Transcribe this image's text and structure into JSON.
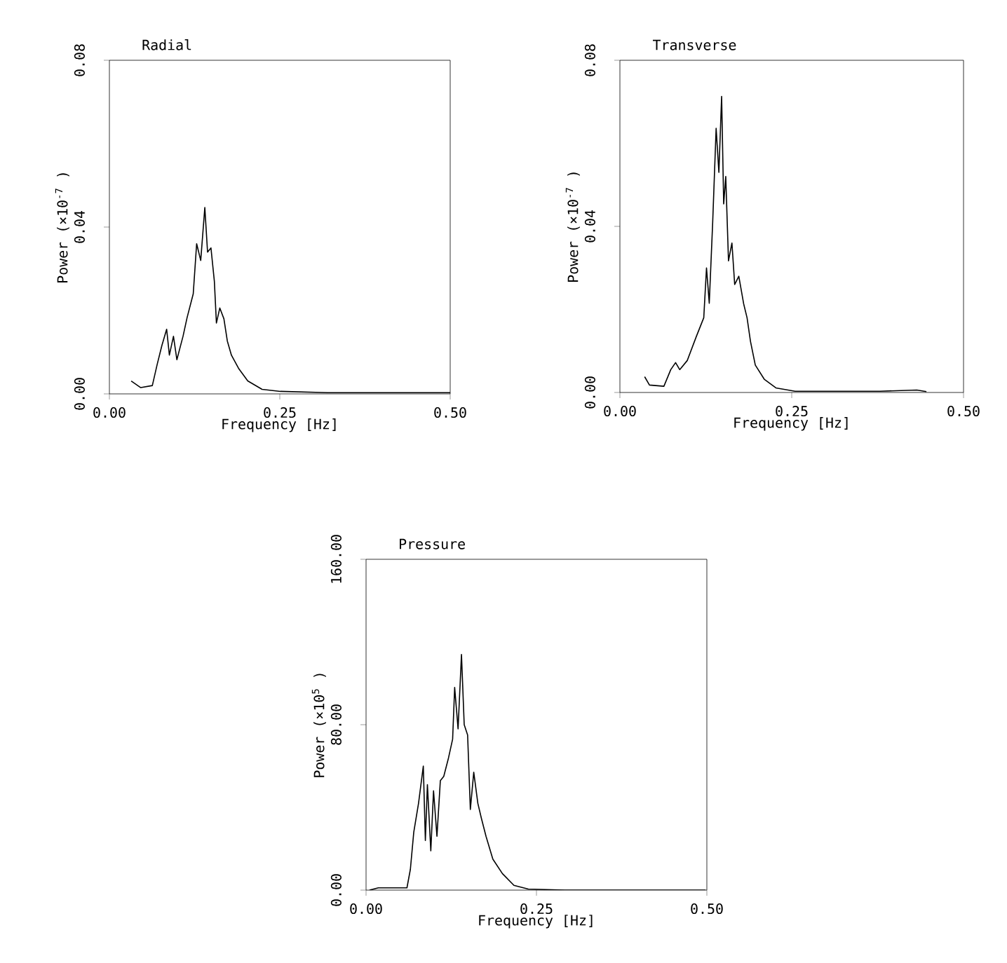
{
  "chart_data": [
    {
      "type": "line",
      "title": "Radial",
      "xlabel": "Frequency [Hz]",
      "ylabel": "Power (×10$^{-7}$ )",
      "color": "#000000",
      "x": [
        0.032,
        0.046,
        0.063,
        0.07,
        0.077,
        0.084,
        0.088,
        0.094,
        0.099,
        0.108,
        0.114,
        0.123,
        0.128,
        0.134,
        0.14,
        0.144,
        0.149,
        0.154,
        0.157,
        0.162,
        0.168,
        0.173,
        0.179,
        0.19,
        0.203,
        0.224,
        0.251,
        0.32,
        0.4,
        0.5
      ],
      "values": [
        0.0031,
        0.0015,
        0.002,
        0.007,
        0.0116,
        0.0155,
        0.0093,
        0.0138,
        0.0082,
        0.0138,
        0.0183,
        0.024,
        0.036,
        0.032,
        0.0447,
        0.034,
        0.035,
        0.027,
        0.017,
        0.0206,
        0.018,
        0.0127,
        0.0093,
        0.006,
        0.0031,
        0.0011,
        0.0006,
        0.0003,
        0.0003,
        0.0003
      ],
      "xlim": [
        0,
        0.5
      ],
      "ylim": [
        0,
        0.08
      ],
      "xticks": [
        {
          "value": 0,
          "label": "0.00"
        },
        {
          "value": 0.25,
          "label": "0.25"
        },
        {
          "value": 0.5,
          "label": "0.50"
        }
      ],
      "yticks": [
        {
          "value": 0,
          "label": "0.00"
        },
        {
          "value": 0.04,
          "label": "0.04"
        },
        {
          "value": 0.08,
          "label": "0.08"
        }
      ]
    },
    {
      "type": "line",
      "title": "Transverse",
      "xlabel": "Frequency [Hz]",
      "ylabel": "Power (×10$^{-7}$ )",
      "color": "#000000",
      "x": [
        0.036,
        0.043,
        0.064,
        0.074,
        0.081,
        0.087,
        0.098,
        0.111,
        0.122,
        0.126,
        0.13,
        0.135,
        0.14,
        0.144,
        0.148,
        0.151,
        0.154,
        0.158,
        0.163,
        0.167,
        0.173,
        0.18,
        0.185,
        0.19,
        0.197,
        0.21,
        0.227,
        0.255,
        0.378,
        0.432,
        0.446
      ],
      "values": [
        0.0038,
        0.0018,
        0.0015,
        0.0055,
        0.0072,
        0.0055,
        0.0077,
        0.0134,
        0.018,
        0.03,
        0.0215,
        0.041,
        0.0636,
        0.053,
        0.0713,
        0.0454,
        0.052,
        0.0317,
        0.036,
        0.026,
        0.028,
        0.0214,
        0.018,
        0.0123,
        0.0066,
        0.0032,
        0.0011,
        0.0003,
        0.0003,
        0.0006,
        0.0002
      ],
      "xlim": [
        0,
        0.5
      ],
      "ylim": [
        0,
        0.08
      ],
      "xticks": [
        {
          "value": 0,
          "label": "0.00"
        },
        {
          "value": 0.25,
          "label": "0.25"
        },
        {
          "value": 0.5,
          "label": "0.50"
        }
      ],
      "yticks": [
        {
          "value": 0,
          "label": "0.00"
        },
        {
          "value": 0.04,
          "label": "0.04"
        },
        {
          "value": 0.08,
          "label": "0.08"
        }
      ]
    },
    {
      "type": "line",
      "title": "Pressure",
      "xlabel": "Frequency [Hz]",
      "ylabel": "Power (×10$^{5}$ )",
      "color": "#000000",
      "x": [
        0.005,
        0.018,
        0.06,
        0.065,
        0.07,
        0.077,
        0.084,
        0.087,
        0.09,
        0.095,
        0.099,
        0.104,
        0.109,
        0.114,
        0.121,
        0.127,
        0.13,
        0.135,
        0.14,
        0.144,
        0.149,
        0.153,
        0.158,
        0.164,
        0.169,
        0.176,
        0.186,
        0.2,
        0.217,
        0.238,
        0.292,
        0.498
      ],
      "values": [
        0,
        1.1,
        1.1,
        10,
        28,
        42,
        60,
        24,
        51,
        19,
        48,
        26,
        53,
        55,
        64,
        73,
        98,
        78,
        114,
        80,
        75,
        39,
        57,
        42,
        35,
        26,
        15,
        8,
        2.3,
        0.5,
        0,
        0
      ],
      "xlim": [
        0,
        0.5
      ],
      "ylim": [
        0,
        160
      ],
      "xticks": [
        {
          "value": 0,
          "label": "0.00"
        },
        {
          "value": 0.25,
          "label": "0.25"
        },
        {
          "value": 0.5,
          "label": "0.50"
        }
      ],
      "yticks": [
        {
          "value": 0,
          "label": "0.00"
        },
        {
          "value": 80,
          "label": "80.00"
        },
        {
          "value": 160,
          "label": "160.00"
        }
      ]
    }
  ]
}
